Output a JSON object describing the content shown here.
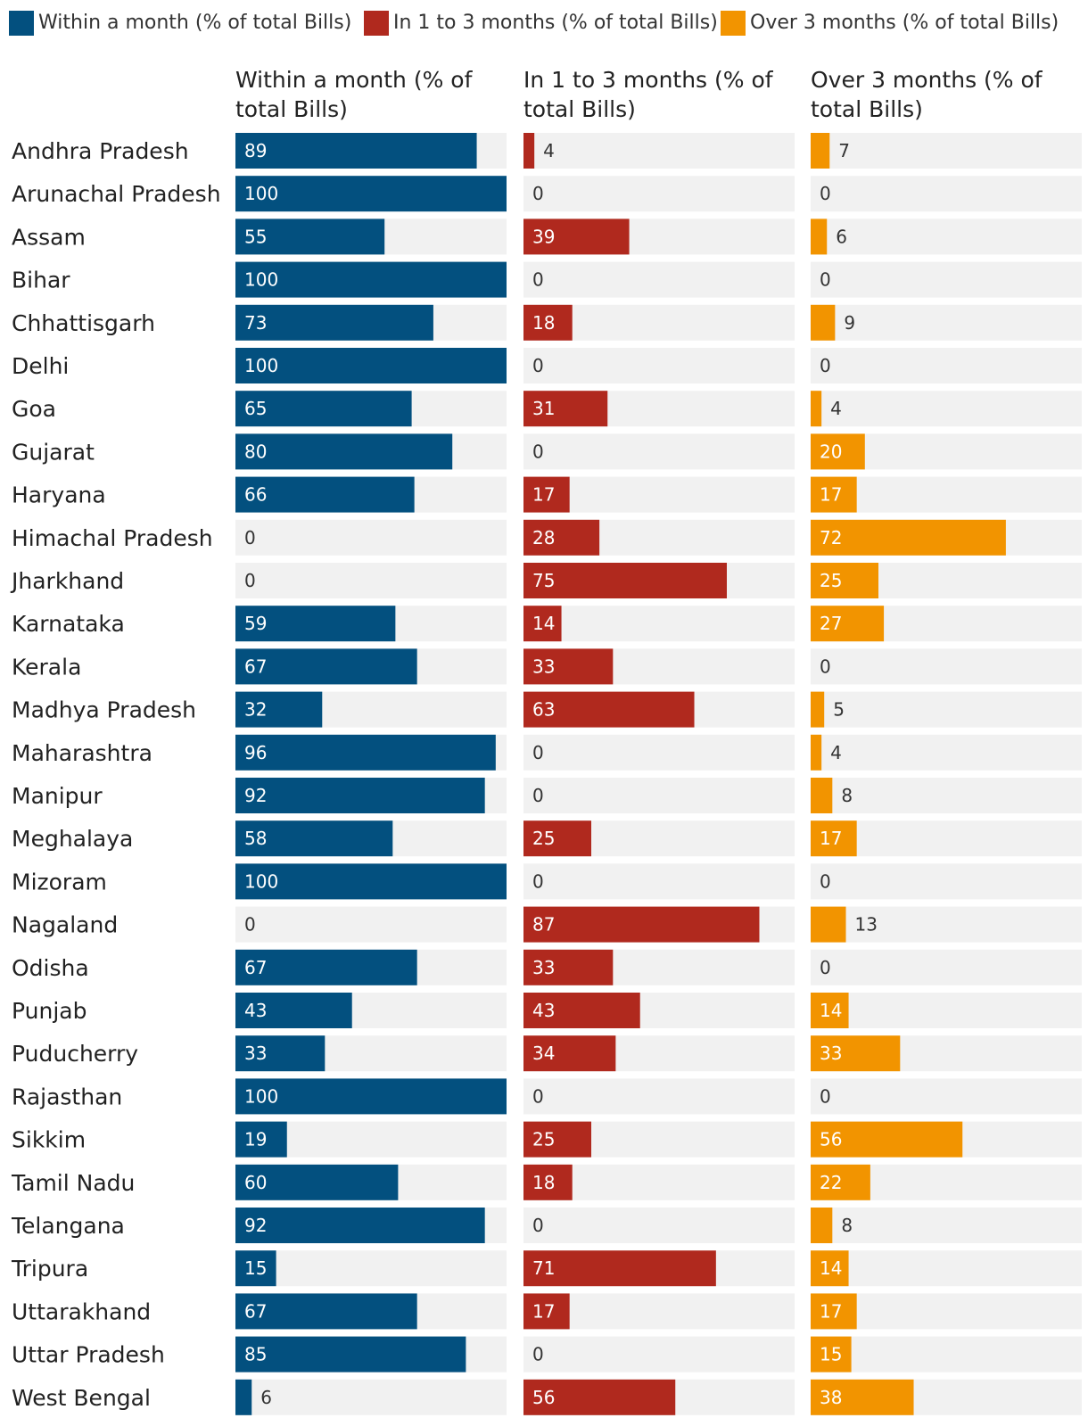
{
  "chart_data": {
    "type": "bar",
    "orientation": "horizontal",
    "layout": "small-multiples",
    "title": "",
    "xlim": [
      0,
      100
    ],
    "categories": [
      "Andhra Pradesh",
      "Arunachal Pradesh",
      "Assam",
      "Bihar",
      "Chhattisgarh",
      "Delhi",
      "Goa",
      "Gujarat",
      "Haryana",
      "Himachal Pradesh",
      "Jharkhand",
      "Karnataka",
      "Kerala",
      "Madhya Pradesh",
      "Maharashtra",
      "Manipur",
      "Meghalaya",
      "Mizoram",
      "Nagaland",
      "Odisha",
      "Punjab",
      "Puducherry",
      "Rajasthan",
      "Sikkim",
      "Tamil Nadu",
      "Telangana",
      "Tripura",
      "Uttarakhand",
      "Uttar Pradesh",
      "West Bengal"
    ],
    "series": [
      {
        "name": "Within a month (% of total Bills)",
        "header_lines": [
          "Within a month (% of",
          "total Bills)"
        ],
        "color": "#03507f",
        "values": [
          89,
          100,
          55,
          100,
          73,
          100,
          65,
          80,
          66,
          0,
          0,
          59,
          67,
          32,
          96,
          92,
          58,
          100,
          0,
          67,
          43,
          33,
          100,
          19,
          60,
          92,
          15,
          67,
          85,
          6
        ]
      },
      {
        "name": "In 1 to 3 months (% of total Bills)",
        "header_lines": [
          "In 1 to 3 months (% of",
          "total Bills)"
        ],
        "color": "#b0291e",
        "values": [
          4,
          0,
          39,
          0,
          18,
          0,
          31,
          0,
          17,
          28,
          75,
          14,
          33,
          63,
          0,
          0,
          25,
          0,
          87,
          33,
          43,
          34,
          0,
          25,
          18,
          0,
          71,
          17,
          0,
          56
        ]
      },
      {
        "name": "Over 3 months (% of total Bills)",
        "header_lines": [
          "Over 3 months (% of",
          "total Bills)"
        ],
        "color": "#f29400",
        "values": [
          7,
          0,
          6,
          0,
          9,
          0,
          4,
          20,
          17,
          72,
          25,
          27,
          0,
          5,
          4,
          8,
          17,
          0,
          13,
          0,
          14,
          33,
          0,
          56,
          22,
          8,
          14,
          17,
          15,
          38
        ]
      }
    ],
    "track_color": "#f1f1f1",
    "legend_position": "top-left"
  }
}
